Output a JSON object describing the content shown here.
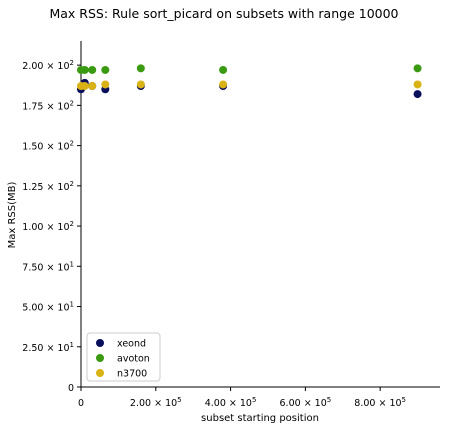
{
  "chart_data": {
    "type": "scatter",
    "title": "Max RSS: Rule sort_picard on subsets with range 10000",
    "xlabel": "subset starting position",
    "ylabel": "Max RSS(MB)",
    "xlim": [
      0,
      960000
    ],
    "ylim": [
      0,
      215
    ],
    "x_ticks": [
      {
        "value": 0,
        "base": "0",
        "exp": ""
      },
      {
        "value": 200000,
        "base": "2.00 × 10",
        "exp": "5"
      },
      {
        "value": 400000,
        "base": "4.00 × 10",
        "exp": "5"
      },
      {
        "value": 600000,
        "base": "6.00 × 10",
        "exp": "5"
      },
      {
        "value": 800000,
        "base": "8.00 × 10",
        "exp": "5"
      }
    ],
    "y_ticks": [
      {
        "value": 0,
        "base": "0",
        "exp": ""
      },
      {
        "value": 25,
        "base": "2.50 × 10",
        "exp": "1"
      },
      {
        "value": 50,
        "base": "5.00 × 10",
        "exp": "1"
      },
      {
        "value": 75,
        "base": "7.50 × 10",
        "exp": "1"
      },
      {
        "value": 100,
        "base": "1.00 × 10",
        "exp": "2"
      },
      {
        "value": 125,
        "base": "1.25 × 10",
        "exp": "2"
      },
      {
        "value": 150,
        "base": "1.50 × 10",
        "exp": "2"
      },
      {
        "value": 175,
        "base": "1.75 × 10",
        "exp": "2"
      },
      {
        "value": 200,
        "base": "2.00 × 10",
        "exp": "2"
      }
    ],
    "legend_position": "bottom-left",
    "grid": false,
    "series": [
      {
        "name": "xeond",
        "color": "#0a0f5c",
        "x": [
          0,
          10000,
          30000,
          65000,
          160000,
          380000,
          900000
        ],
        "y": [
          185,
          189,
          187,
          185,
          187,
          187,
          182
        ]
      },
      {
        "name": "avoton",
        "color": "#3a9a12",
        "x": [
          0,
          10000,
          30000,
          65000,
          160000,
          380000,
          900000
        ],
        "y": [
          197,
          197,
          197,
          197,
          198,
          197,
          198
        ]
      },
      {
        "name": "n3700",
        "color": "#d9b215",
        "x": [
          0,
          10000,
          30000,
          65000,
          160000,
          380000,
          900000
        ],
        "y": [
          187,
          187,
          187,
          188,
          188,
          188,
          188
        ]
      }
    ]
  }
}
